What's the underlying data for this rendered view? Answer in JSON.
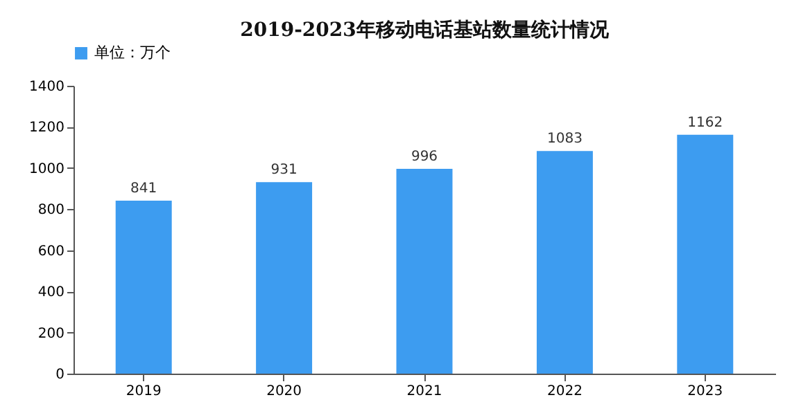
{
  "chart_data": {
    "type": "bar",
    "title": "2019-2023年移动电话基站数量统计情况",
    "categories": [
      "2019",
      "2020",
      "2021",
      "2022",
      "2023"
    ],
    "series": [
      {
        "name": "单位：万个",
        "color": "#3d9cf0",
        "values": [
          841,
          931,
          996,
          1083,
          1162
        ]
      }
    ],
    "ylim": [
      0,
      1400
    ],
    "yticks": [
      0,
      200,
      400,
      600,
      800,
      1000,
      1200,
      1400
    ],
    "data_labels": true,
    "legend": "top",
    "grid": false
  }
}
